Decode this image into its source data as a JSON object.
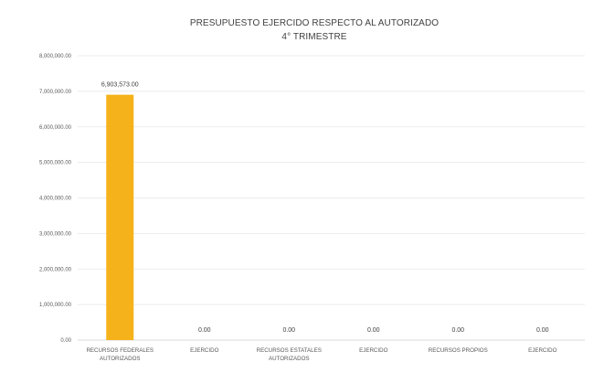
{
  "chart_data": {
    "type": "bar",
    "title": "PRESUPUESTO EJERCIDO RESPECTO AL AUTORIZADO",
    "subtitle": "4° TRIMESTRE",
    "xlabel": "",
    "ylabel": "",
    "ylim": [
      0,
      8000000
    ],
    "y_ticks": [
      0,
      1000000,
      2000000,
      3000000,
      4000000,
      5000000,
      6000000,
      7000000,
      8000000
    ],
    "y_tick_labels": [
      "0.00",
      "1,000,000.00",
      "2,000,000.00",
      "3,000,000.00",
      "4,000,000.00",
      "5,000,000.00",
      "6,000,000.00",
      "7,000,000.00",
      "8,000,000.00"
    ],
    "categories": [
      [
        "RECURSOS FEDERALES",
        "AUTORIZADOS"
      ],
      [
        "EJERCIDO"
      ],
      [
        "RECURSOS ESTATALES",
        "AUTORIZADOS"
      ],
      [
        "EJERCIDO"
      ],
      [
        "RECURSOS PROPIOS"
      ],
      [
        "EJERCIDO"
      ]
    ],
    "values": [
      6903573,
      0,
      0,
      0,
      0,
      0
    ],
    "data_labels": [
      "6,903,573.00",
      "0.00",
      "0.00",
      "0.00",
      "0.00",
      "0.00"
    ],
    "grid": true,
    "legend": "none",
    "bar_color": "#f5b21b"
  }
}
